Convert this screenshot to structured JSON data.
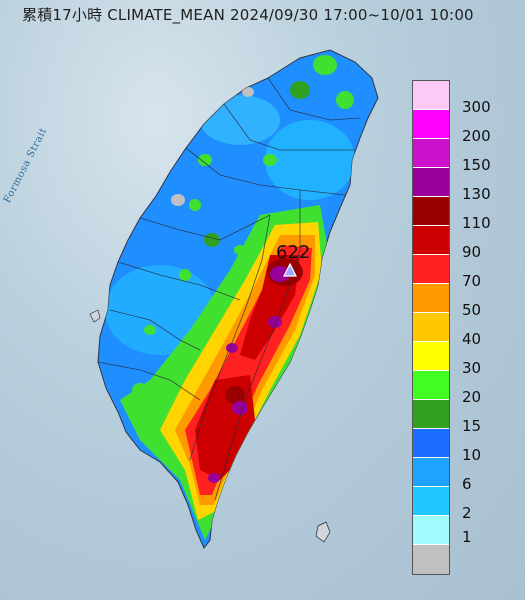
{
  "title": "累積17小時 CLIMATE_MEAN 2024/09/30 17:00~10/01 10:00",
  "strait_label": "Formosa Strait",
  "peak": {
    "value": "622",
    "marker": "triangle-marker"
  },
  "legend": {
    "labels": [
      "300",
      "200",
      "150",
      "130",
      "110",
      "90",
      "70",
      "50",
      "40",
      "30",
      "20",
      "15",
      "10",
      "6",
      "2",
      "1"
    ],
    "colors": [
      "#fdc9f7",
      "#ff00ff",
      "#cc11cc",
      "#990099",
      "#9a0000",
      "#cc0000",
      "#ff2020",
      "#ff9a00",
      "#ffc800",
      "#ffff00",
      "#40ff20",
      "#30a020",
      "#1a6dff",
      "#1fa3ff",
      "#20c8ff",
      "#a0fcff",
      "#c0c0c0"
    ]
  }
}
